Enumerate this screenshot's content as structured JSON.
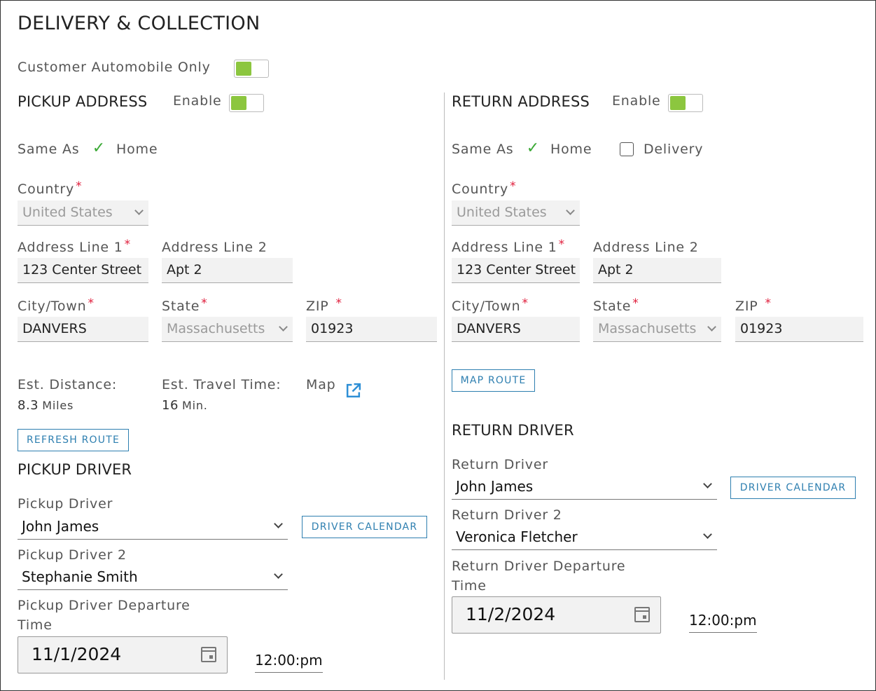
{
  "page_title": "DELIVERY & COLLECTION",
  "customer_auto_only_label": "Customer Automobile Only",
  "pickup": {
    "section_title": "PICKUP ADDRESS",
    "enable_label": "Enable",
    "same_as_label": "Same As",
    "home_label": "Home",
    "country_label": "Country",
    "country_value": "United States",
    "address1_label": "Address Line 1",
    "address1_value": "123 Center Street",
    "address2_label": "Address Line 2",
    "address2_value": "Apt 2",
    "city_label": "City/Town",
    "city_value": "DANVERS",
    "state_label": "State",
    "state_value": "Massachusetts",
    "zip_label": "ZIP",
    "zip_value": "01923",
    "est_distance_label": "Est. Distance:",
    "est_distance_value": "8.3",
    "est_distance_unit": "Miles",
    "est_travel_label": "Est. Travel Time:",
    "est_travel_value": "16",
    "est_travel_unit": "Min.",
    "map_label": "Map",
    "refresh_route_label": "REFRESH ROUTE",
    "driver_section_title": "PICKUP DRIVER",
    "driver_label": "Pickup Driver",
    "driver_value": "John James",
    "driver_calendar_label": "DRIVER CALENDAR",
    "driver2_label": "Pickup Driver 2",
    "driver2_value": "Stephanie Smith",
    "departure_label_line1": "Pickup Driver Departure",
    "departure_label_line2": "Time",
    "departure_date": "11/1/2024",
    "departure_time": "12:00:pm"
  },
  "return": {
    "section_title": "RETURN ADDRESS",
    "enable_label": "Enable",
    "same_as_label": "Same As",
    "home_label": "Home",
    "delivery_label": "Delivery",
    "country_label": "Country",
    "country_value": "United States",
    "address1_label": "Address Line 1",
    "address1_value": "123 Center Street",
    "address2_label": "Address Line 2",
    "address2_value": "Apt 2",
    "city_label": "City/Town",
    "city_value": "DANVERS",
    "state_label": "State",
    "state_value": "Massachusetts",
    "zip_label": "ZIP",
    "zip_value": "01923",
    "map_route_label": "MAP ROUTE",
    "driver_section_title": "RETURN DRIVER",
    "driver_label": "Return Driver",
    "driver_value": "John James",
    "driver_calendar_label": "DRIVER CALENDAR",
    "driver2_label": "Return Driver 2",
    "driver2_value": "Veronica Fletcher",
    "departure_label_line1": "Return Driver Departure",
    "departure_label_line2": "Time",
    "departure_date": "11/2/2024",
    "departure_time": "12:00:pm"
  },
  "required_marker": "*",
  "colors": {
    "toggle_on": "#8cc63f",
    "accent": "#2e7fb0",
    "required": "#e01e3c",
    "checkbox": "#3aa935"
  },
  "icons": {
    "checked": "check-icon",
    "external": "external-link-icon",
    "calendar": "calendar-icon",
    "dropdown": "chevron-down-icon"
  }
}
